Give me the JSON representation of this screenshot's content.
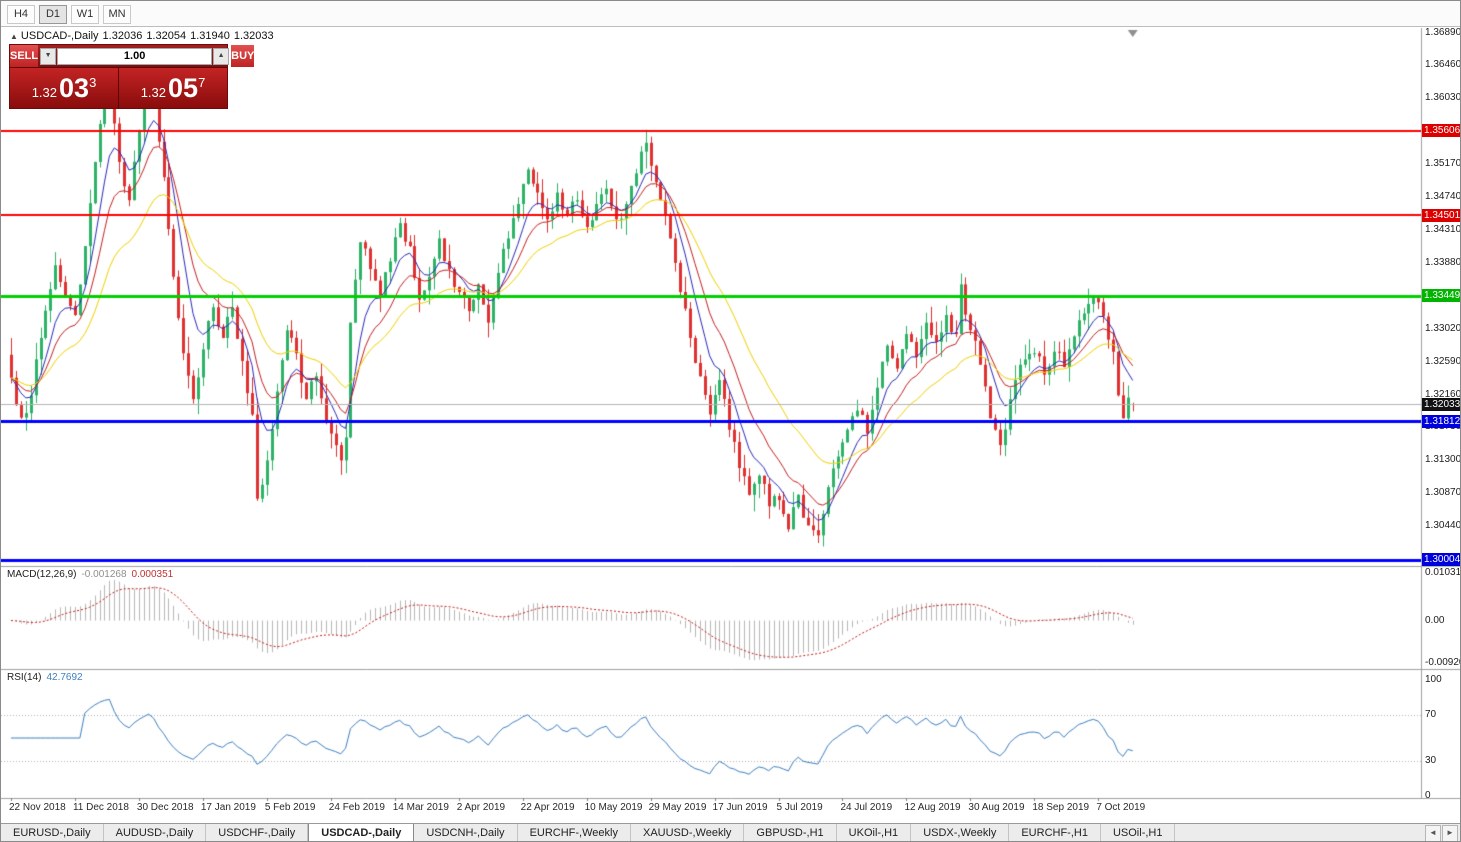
{
  "toolbar": {
    "buttons": [
      "H4",
      "D1",
      "W1",
      "MN"
    ],
    "active": "D1"
  },
  "chart_header": {
    "collapse_icon": "▲",
    "title": "USDCAD-,Daily",
    "open": "1.32036",
    "high": "1.32054",
    "low": "1.31940",
    "close": "1.32033"
  },
  "trade_panel": {
    "sell_label": "SELL",
    "buy_label": "BUY",
    "volume": "1.00",
    "bid": {
      "prefix": "1.32",
      "big": "03",
      "sup": "3"
    },
    "ask": {
      "prefix": "1.32",
      "big": "05",
      "sup": "7"
    }
  },
  "icons": {
    "spinner_down": "▼",
    "spinner_up": "▲",
    "tab_prev": "◄",
    "tab_next": "►"
  },
  "price_axis": {
    "ticks": [
      "1.36890",
      "1.36460",
      "1.36030",
      "1.35170",
      "1.34740",
      "1.34310",
      "1.33880",
      "1.33020",
      "1.32590",
      "1.32160",
      "1.31730",
      "1.31300",
      "1.30870",
      "1.30440"
    ],
    "badges": [
      {
        "text": "1.35606",
        "color": "#dd0000"
      },
      {
        "text": "1.34501",
        "color": "#dd0000"
      },
      {
        "text": "1.33449",
        "color": "#00b400"
      },
      {
        "text": "1.32033",
        "color": "#111111"
      },
      {
        "text": "1.31812",
        "color": "#0000dd"
      },
      {
        "text": "1.30004",
        "color": "#0000dd"
      }
    ]
  },
  "macd_axis": {
    "ticks": [
      {
        "text": "0.010311",
        "value": 0.010311
      },
      {
        "text": "0.00",
        "value": 0
      },
      {
        "text": "-0.009201",
        "value": -0.009201
      }
    ]
  },
  "rsi_axis": {
    "ticks": [
      {
        "text": "100",
        "value": 100
      },
      {
        "text": "70",
        "value": 70
      },
      {
        "text": "30",
        "value": 30
      },
      {
        "text": "0",
        "value": 0
      }
    ]
  },
  "date_axis": {
    "labels": [
      {
        "text": "22 Nov 2018",
        "index": 0
      },
      {
        "text": "11 Dec 2018",
        "index": 13
      },
      {
        "text": "30 Dec 2018",
        "index": 26
      },
      {
        "text": "17 Jan 2019",
        "index": 39
      },
      {
        "text": "5 Feb 2019",
        "index": 52
      },
      {
        "text": "24 Feb 2019",
        "index": 65
      },
      {
        "text": "14 Mar 2019",
        "index": 78
      },
      {
        "text": "2 Apr 2019",
        "index": 91
      },
      {
        "text": "22 Apr 2019",
        "index": 104
      },
      {
        "text": "10 May 2019",
        "index": 117
      },
      {
        "text": "29 May 2019",
        "index": 130
      },
      {
        "text": "17 Jun 2019",
        "index": 143
      },
      {
        "text": "5 Jul 2019",
        "index": 156
      },
      {
        "text": "24 Jul 2019",
        "index": 169
      },
      {
        "text": "12 Aug 2019",
        "index": 182
      },
      {
        "text": "30 Aug 2019",
        "index": 195
      },
      {
        "text": "18 Sep 2019",
        "index": 208
      },
      {
        "text": "7 Oct 2019",
        "index": 221
      }
    ]
  },
  "indicators": {
    "macd": {
      "label": "MACD(12,26,9)",
      "main_value": "-0.001268",
      "signal_value": "0.000351",
      "fast": 12,
      "slow": 26,
      "signal": 9
    },
    "rsi": {
      "label": "RSI(14)",
      "value": "42.7692",
      "period": 14,
      "levels": [
        70,
        30
      ]
    }
  },
  "tabbar": {
    "tabs": [
      {
        "label": "EURUSD-,Daily",
        "active": false
      },
      {
        "label": "AUDUSD-,Daily",
        "active": false
      },
      {
        "label": "USDCHF-,Daily",
        "active": false
      },
      {
        "label": "USDCAD-,Daily",
        "active": true
      },
      {
        "label": "USDCNH-,Daily",
        "active": false
      },
      {
        "label": "EURCHF-,Weekly",
        "active": false
      },
      {
        "label": "XAUUSD-,Weekly",
        "active": false
      },
      {
        "label": "GBPUSD-,H1",
        "active": false
      },
      {
        "label": "UKOil-,H1",
        "active": false
      },
      {
        "label": "USDX-,Weekly",
        "active": false
      },
      {
        "label": "EURCHF-,H1",
        "active": false
      },
      {
        "label": "USOil-,H1",
        "active": false
      }
    ]
  },
  "chart_data": {
    "type": "candlestick",
    "symbol": "USDCAD",
    "timeframe": "Daily",
    "candle_count": 229,
    "visible_range": {
      "price_min": 1.2992,
      "price_max": 1.3695
    },
    "current_ohlc": {
      "o": 1.32036,
      "h": 1.32054,
      "l": 1.3194,
      "c": 1.32033
    },
    "wiggle": 0.001,
    "close_anchors": [
      [
        0,
        1.3238
      ],
      [
        2,
        1.3186
      ],
      [
        4,
        1.3215
      ],
      [
        6,
        1.329
      ],
      [
        9,
        1.3385
      ],
      [
        11,
        1.3345
      ],
      [
        13,
        1.332
      ],
      [
        15,
        1.341
      ],
      [
        17,
        1.352
      ],
      [
        19,
        1.361
      ],
      [
        20,
        1.363
      ],
      [
        22,
        1.352
      ],
      [
        24,
        1.347
      ],
      [
        26,
        1.356
      ],
      [
        28,
        1.363
      ],
      [
        29,
        1.3605
      ],
      [
        31,
        1.35
      ],
      [
        33,
        1.337
      ],
      [
        35,
        1.327
      ],
      [
        37,
        1.321
      ],
      [
        39,
        1.3275
      ],
      [
        41,
        1.333
      ],
      [
        43,
        1.329
      ],
      [
        45,
        1.333
      ],
      [
        47,
        1.326
      ],
      [
        49,
        1.319
      ],
      [
        50,
        1.308
      ],
      [
        52,
        1.313
      ],
      [
        54,
        1.322
      ],
      [
        56,
        1.33
      ],
      [
        58,
        1.327
      ],
      [
        60,
        1.321
      ],
      [
        62,
        1.324
      ],
      [
        64,
        1.318
      ],
      [
        65,
        1.3165
      ],
      [
        67,
        1.313
      ],
      [
        68,
        1.316
      ],
      [
        69,
        1.331
      ],
      [
        71,
        1.3415
      ],
      [
        73,
        1.338
      ],
      [
        75,
        1.3345
      ],
      [
        77,
        1.339
      ],
      [
        79,
        1.344
      ],
      [
        81,
        1.341
      ],
      [
        83,
        1.334
      ],
      [
        85,
        1.337
      ],
      [
        87,
        1.342
      ],
      [
        89,
        1.338
      ],
      [
        91,
        1.335
      ],
      [
        93,
        1.3325
      ],
      [
        95,
        1.336
      ],
      [
        97,
        1.331
      ],
      [
        99,
        1.3375
      ],
      [
        101,
        1.342
      ],
      [
        103,
        1.3465
      ],
      [
        105,
        1.351
      ],
      [
        107,
        1.348
      ],
      [
        109,
        1.3445
      ],
      [
        111,
        1.348
      ],
      [
        113,
        1.345
      ],
      [
        115,
        1.347
      ],
      [
        117,
        1.3435
      ],
      [
        119,
        1.3465
      ],
      [
        121,
        1.3485
      ],
      [
        123,
        1.3445
      ],
      [
        125,
        1.3465
      ],
      [
        127,
        1.3505
      ],
      [
        129,
        1.3545
      ],
      [
        130,
        1.3515
      ],
      [
        132,
        1.347
      ],
      [
        134,
        1.342
      ],
      [
        136,
        1.335
      ],
      [
        138,
        1.329
      ],
      [
        140,
        1.324
      ],
      [
        142,
        1.319
      ],
      [
        144,
        1.3235
      ],
      [
        146,
        1.317
      ],
      [
        148,
        1.312
      ],
      [
        150,
        1.3085
      ],
      [
        152,
        1.311
      ],
      [
        154,
        1.307
      ],
      [
        156,
        1.3078
      ],
      [
        158,
        1.304
      ],
      [
        160,
        1.3085
      ],
      [
        162,
        1.3045
      ],
      [
        164,
        1.3032
      ],
      [
        166,
        1.3095
      ],
      [
        168,
        1.3135
      ],
      [
        170,
        1.317
      ],
      [
        172,
        1.3195
      ],
      [
        174,
        1.3165
      ],
      [
        176,
        1.3225
      ],
      [
        178,
        1.328
      ],
      [
        180,
        1.325
      ],
      [
        182,
        1.3295
      ],
      [
        184,
        1.3265
      ],
      [
        186,
        1.331
      ],
      [
        188,
        1.3285
      ],
      [
        190,
        1.332
      ],
      [
        192,
        1.3295
      ],
      [
        193,
        1.336
      ],
      [
        195,
        1.33
      ],
      [
        197,
        1.3255
      ],
      [
        199,
        1.3185
      ],
      [
        201,
        1.315
      ],
      [
        203,
        1.321
      ],
      [
        205,
        1.3255
      ],
      [
        208,
        1.327
      ],
      [
        210,
        1.3242
      ],
      [
        212,
        1.3272
      ],
      [
        214,
        1.3252
      ],
      [
        216,
        1.3292
      ],
      [
        218,
        1.3322
      ],
      [
        220,
        1.3342
      ],
      [
        222,
        1.3318
      ],
      [
        224,
        1.3272
      ],
      [
        225,
        1.3215
      ],
      [
        226,
        1.3185
      ],
      [
        227,
        1.3212
      ],
      [
        228,
        1.32033
      ]
    ],
    "moving_averages": [
      {
        "period": 7,
        "color": "#2a2ab8"
      },
      {
        "period": 13,
        "color": "#c22222"
      },
      {
        "period": 26,
        "color": "#efd100"
      }
    ],
    "levels": [
      {
        "price": 1.35606,
        "color": "#ff0000",
        "width": 2
      },
      {
        "price": 1.34501,
        "color": "#ff0000",
        "width": 2
      },
      {
        "price": 1.33449,
        "color": "#00d000",
        "width": 3
      },
      {
        "price": 1.32033,
        "color": "#b4b4b4",
        "width": 1
      },
      {
        "price": 1.31812,
        "color": "#0000ff",
        "width": 3
      },
      {
        "price": 1.30004,
        "color": "#0000ff",
        "width": 3
      }
    ],
    "macd_range": {
      "min": -0.009201,
      "max": 0.010311
    },
    "colors": {
      "candle_up": "#2eb268",
      "candle_down": "#e03030",
      "macd_histogram": "#b8b8b8",
      "macd_signal": "#c02020",
      "rsi_line": "#3e7fc1",
      "rsi_levels": "#b6b6b6"
    }
  }
}
